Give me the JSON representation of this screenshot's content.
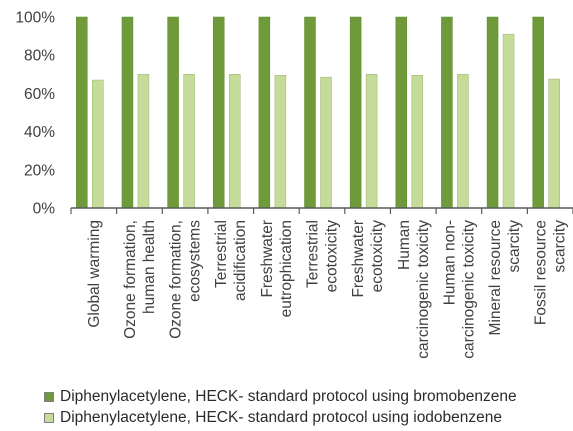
{
  "chart_data": {
    "type": "bar",
    "categories": [
      "Global warming",
      "Ozone formation, human health",
      "Ozone formation, ecosystems",
      "Terrestrial acidification",
      "Freshwater eutrophication",
      "Terrestrial ecotoxicity",
      "Freshwater ecotoxicity",
      "Human carcinogenic toxicity",
      "Human non-carcinogenic toxicity",
      "Mineral resource scarcity",
      "Fossil resource scarcity"
    ],
    "category_label_lines": [
      [
        "Global warming"
      ],
      [
        "Ozone formation,",
        "human health"
      ],
      [
        "Ozone formation,",
        "ecosystems"
      ],
      [
        "Terrestrial",
        "acidification"
      ],
      [
        "Freshwater",
        "eutrophication"
      ],
      [
        "Terrestrial",
        "ecotoxicity"
      ],
      [
        "Freshwater",
        "ecotoxicity"
      ],
      [
        "Human",
        "carcinogenic toxicity"
      ],
      [
        "Human non-",
        "carcinogenic toxicity"
      ],
      [
        "Mineral resource",
        "scarcity"
      ],
      [
        "Fossil resource",
        "scarcity"
      ]
    ],
    "series": [
      {
        "name": "Diphenylacetylene, HECK- standard protocol using bromobenzene",
        "color": "#6f9a3a",
        "values": [
          100,
          100,
          100,
          100,
          100,
          100,
          100,
          100,
          100,
          100,
          100
        ]
      },
      {
        "name": "Diphenylacetylene, HECK- standard protocol using iodobenzene",
        "color": "#c5db9a",
        "values": [
          67,
          70,
          70,
          70,
          69.5,
          68.5,
          70,
          69.5,
          70,
          91,
          67.5
        ]
      }
    ],
    "ylim": [
      0,
      100
    ],
    "yticks": [
      "0%",
      "20%",
      "40%",
      "60%",
      "80%",
      "100%"
    ],
    "ytick_values": [
      0,
      20,
      40,
      60,
      80,
      100
    ],
    "grid": false,
    "legend_position": "bottom"
  }
}
